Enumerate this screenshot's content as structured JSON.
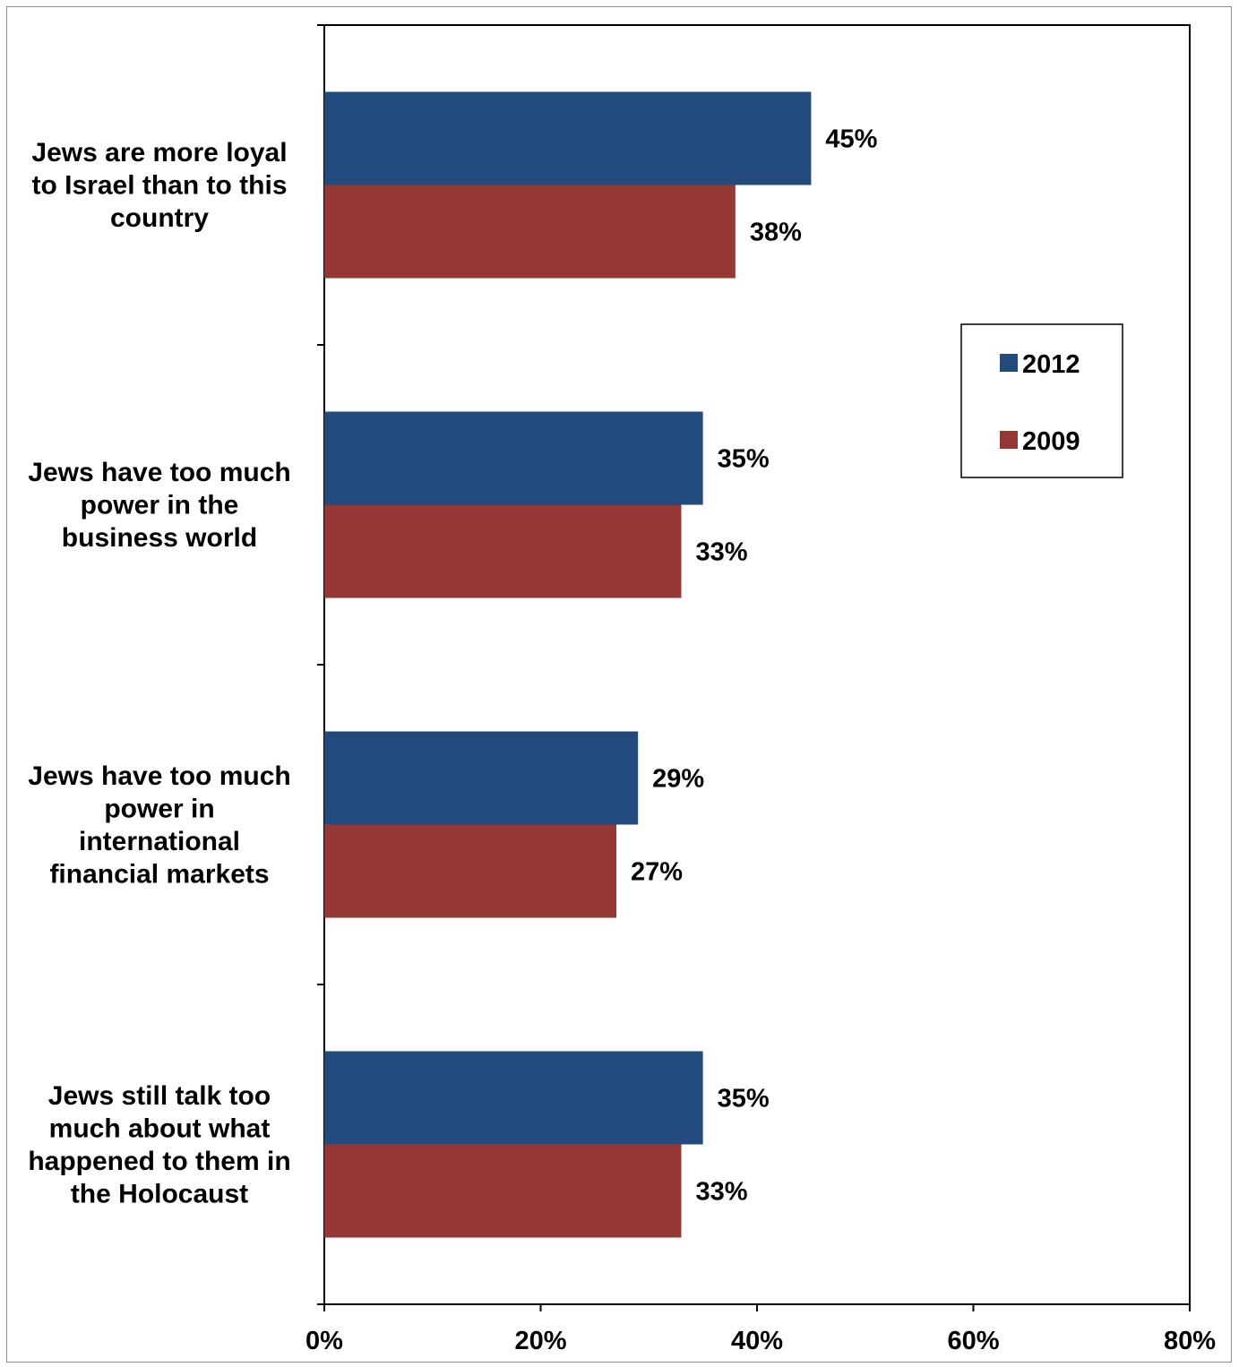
{
  "chart_data": {
    "type": "bar",
    "orientation": "horizontal",
    "categories": [
      "Jews are more loyal to Israel than to this country",
      "Jews have too much power in the business world",
      "Jews have too much power in international financial markets",
      "Jews still talk too much about what happened to them in the Holocaust"
    ],
    "category_lines": [
      [
        "Jews are more loyal",
        "to Israel than to this",
        "country"
      ],
      [
        "Jews have too much",
        "power in the",
        "business world"
      ],
      [
        "Jews have too much",
        "power in",
        "international",
        "financial markets"
      ],
      [
        "Jews still talk too",
        "much about what",
        "happened to them in",
        "the Holocaust"
      ]
    ],
    "series": [
      {
        "name": "2012",
        "color": "#234A7C",
        "values": [
          45,
          35,
          29,
          35
        ],
        "labels": [
          "45%",
          "35%",
          "29%",
          "35%"
        ]
      },
      {
        "name": "2009",
        "color": "#953735",
        "values": [
          38,
          33,
          27,
          33
        ],
        "labels": [
          "38%",
          "33%",
          "27%",
          "33%"
        ]
      }
    ],
    "xlim": [
      0,
      80
    ],
    "x_ticks": [
      0,
      20,
      40,
      60,
      80
    ],
    "x_tick_labels": [
      "0%",
      "20%",
      "40%",
      "60%",
      "80%"
    ],
    "title": "",
    "xlabel": "",
    "ylabel": "",
    "grid": false,
    "legend_position": "right"
  }
}
